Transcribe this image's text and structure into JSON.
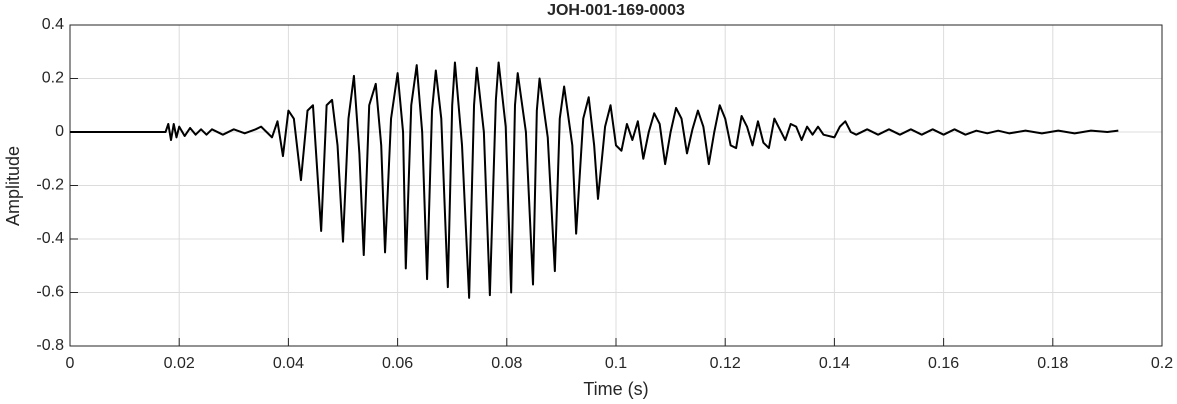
{
  "chart_data": {
    "type": "line",
    "title": "JOH-001-169-0003",
    "x_label": "Time (s)",
    "y_label": "Amplitude",
    "x": [
      0,
      0.005,
      0.01,
      0.015,
      0.0175,
      0.018,
      0.0185,
      0.019,
      0.0195,
      0.02,
      0.021,
      0.022,
      0.023,
      0.024,
      0.025,
      0.026,
      0.028,
      0.03,
      0.032,
      0.034,
      0.035,
      0.036,
      0.037,
      0.038,
      0.039,
      0.04,
      0.041,
      0.0423,
      0.0435,
      0.0445,
      0.046,
      0.047,
      0.048,
      0.049,
      0.05,
      0.051,
      0.052,
      0.053,
      0.0538,
      0.0548,
      0.056,
      0.057,
      0.0577,
      0.0588,
      0.06,
      0.061,
      0.0615,
      0.0625,
      0.0635,
      0.0645,
      0.0654,
      0.0663,
      0.067,
      0.068,
      0.0692,
      0.07,
      0.0705,
      0.0718,
      0.0731,
      0.074,
      0.0745,
      0.0758,
      0.0769,
      0.078,
      0.0785,
      0.0798,
      0.0808,
      0.0815,
      0.082,
      0.0835,
      0.0848,
      0.0855,
      0.086,
      0.0875,
      0.0888,
      0.0897,
      0.0905,
      0.092,
      0.0927,
      0.094,
      0.095,
      0.096,
      0.0967,
      0.098,
      0.099,
      0.1,
      0.101,
      0.102,
      0.103,
      0.104,
      0.105,
      0.106,
      0.107,
      0.108,
      0.109,
      0.11,
      0.111,
      0.112,
      0.113,
      0.114,
      0.115,
      0.116,
      0.117,
      0.118,
      0.119,
      0.12,
      0.121,
      0.122,
      0.123,
      0.124,
      0.125,
      0.126,
      0.127,
      0.128,
      0.129,
      0.13,
      0.131,
      0.132,
      0.133,
      0.134,
      0.135,
      0.136,
      0.137,
      0.138,
      0.14,
      0.141,
      0.142,
      0.143,
      0.144,
      0.146,
      0.148,
      0.15,
      0.152,
      0.154,
      0.156,
      0.158,
      0.16,
      0.162,
      0.164,
      0.166,
      0.168,
      0.17,
      0.172,
      0.175,
      0.178,
      0.181,
      0.184,
      0.187,
      0.19,
      0.192
    ],
    "values": [
      0,
      0,
      0,
      0,
      0,
      0.03,
      -0.03,
      0.03,
      -0.02,
      0.02,
      -0.015,
      0.015,
      -0.01,
      0.01,
      -0.01,
      0.01,
      -0.01,
      0.01,
      -0.005,
      0.01,
      0.02,
      0,
      -0.02,
      0.04,
      -0.09,
      0.08,
      0.05,
      -0.18,
      0.08,
      0.1,
      -0.37,
      0.1,
      0.12,
      -0.05,
      -0.41,
      0.05,
      0.21,
      -0.08,
      -0.46,
      0.1,
      0.18,
      -0.05,
      -0.45,
      0.05,
      0.22,
      0,
      -0.51,
      0.1,
      0.25,
      0,
      -0.55,
      0.08,
      0.23,
      0.05,
      -0.58,
      0.1,
      0.26,
      -0.05,
      -0.62,
      0.1,
      0.24,
      0,
      -0.61,
      0.12,
      0.26,
      0.02,
      -0.6,
      0.1,
      0.22,
      0,
      -0.57,
      0.08,
      0.2,
      -0.02,
      -0.52,
      0.05,
      0.17,
      -0.05,
      -0.38,
      0.05,
      0.13,
      -0.05,
      -0.25,
      0.02,
      0.1,
      -0.05,
      -0.07,
      0.03,
      -0.03,
      0.04,
      -0.1,
      0,
      0.07,
      0.03,
      -0.12,
      0,
      0.09,
      0.05,
      -0.08,
      0.01,
      0.08,
      0.02,
      -0.12,
      0,
      0.1,
      0.05,
      -0.05,
      -0.06,
      0.06,
      0.02,
      -0.05,
      0.04,
      -0.04,
      -0.06,
      0.05,
      0.01,
      -0.03,
      0.03,
      0.02,
      -0.03,
      0.02,
      -0.01,
      0.02,
      -0.01,
      -0.02,
      0.02,
      0.04,
      0,
      -0.01,
      0.01,
      -0.01,
      0.01,
      -0.01,
      0.01,
      -0.01,
      0.01,
      -0.01,
      0.01,
      -0.01,
      0.005,
      -0.005,
      0.005,
      -0.005,
      0.005,
      -0.005,
      0.005,
      -0.005,
      0.005,
      0,
      0.005
    ],
    "color": "#000000",
    "xlim": [
      0,
      0.2
    ],
    "xticks": [
      0,
      0.02,
      0.04,
      0.06,
      0.08,
      0.1,
      0.12,
      0.14,
      0.16,
      0.18,
      0.2
    ],
    "ylim": [
      -0.8,
      0.4
    ],
    "yticks": [
      -0.8,
      -0.6,
      -0.4,
      -0.2,
      0,
      0.2,
      0.4
    ],
    "grid": true
  }
}
